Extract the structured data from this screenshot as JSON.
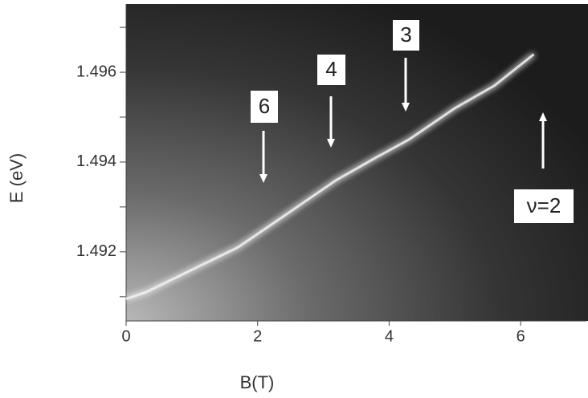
{
  "chart_data": {
    "type": "line",
    "x_label": "B(T)",
    "y_label": "E (eV)",
    "x": [
      0,
      0.3,
      1.0,
      1.7,
      2.3,
      2.7,
      3.2,
      3.8,
      4.3,
      5.0,
      5.6,
      6.2
    ],
    "values": [
      1.49095,
      1.4911,
      1.4916,
      1.4921,
      1.4927,
      1.4931,
      1.4936,
      1.4941,
      1.4945,
      1.4952,
      1.4957,
      1.4964
    ],
    "color": "#f4f4f4",
    "xlim": [
      0,
      7
    ],
    "ylim": [
      1.49046,
      1.49752
    ],
    "xticks": [
      0,
      2,
      4,
      6
    ],
    "yticks": [
      1.492,
      1.494,
      1.496
    ],
    "yminor_ticks": [
      1.491,
      1.493,
      1.495,
      1.497
    ],
    "annotations": [
      {
        "text": "6"
      },
      {
        "text": "4"
      },
      {
        "text": "3"
      },
      {
        "text": "ν=2"
      }
    ]
  }
}
